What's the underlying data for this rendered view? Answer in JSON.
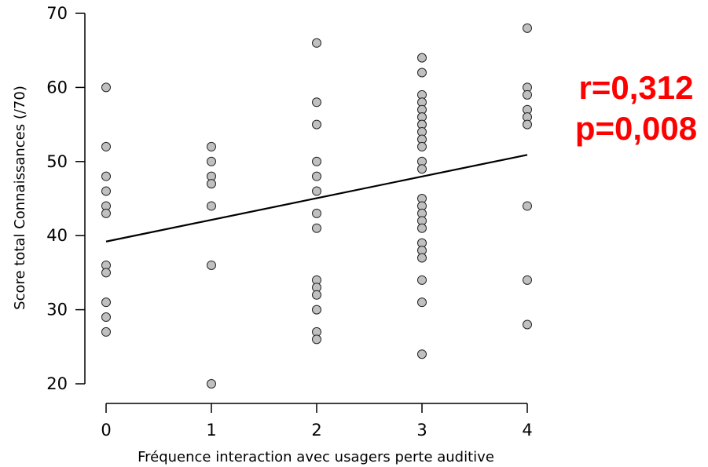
{
  "chart_data": {
    "type": "scatter",
    "xlabel": "Fréquence interaction avec usagers perte auditive",
    "ylabel": "Score total Connaissances (/70)",
    "x_ticks": [
      "0",
      "1",
      "2",
      "3",
      "4"
    ],
    "y_ticks": [
      "20",
      "30",
      "40",
      "50",
      "60",
      "70"
    ],
    "xlim": [
      0,
      4
    ],
    "ylim": [
      20,
      70
    ],
    "grid": false,
    "points": [
      {
        "x": 0,
        "y": 60
      },
      {
        "x": 0,
        "y": 52
      },
      {
        "x": 0,
        "y": 48
      },
      {
        "x": 0,
        "y": 46
      },
      {
        "x": 0,
        "y": 44
      },
      {
        "x": 0,
        "y": 43
      },
      {
        "x": 0,
        "y": 36
      },
      {
        "x": 0,
        "y": 35
      },
      {
        "x": 0,
        "y": 31
      },
      {
        "x": 0,
        "y": 29
      },
      {
        "x": 0,
        "y": 27
      },
      {
        "x": 1,
        "y": 52
      },
      {
        "x": 1,
        "y": 50
      },
      {
        "x": 1,
        "y": 48
      },
      {
        "x": 1,
        "y": 47
      },
      {
        "x": 1,
        "y": 44
      },
      {
        "x": 1,
        "y": 36
      },
      {
        "x": 1,
        "y": 20
      },
      {
        "x": 2,
        "y": 66
      },
      {
        "x": 2,
        "y": 58
      },
      {
        "x": 2,
        "y": 55
      },
      {
        "x": 2,
        "y": 50
      },
      {
        "x": 2,
        "y": 48
      },
      {
        "x": 2,
        "y": 46
      },
      {
        "x": 2,
        "y": 43
      },
      {
        "x": 2,
        "y": 41
      },
      {
        "x": 2,
        "y": 34
      },
      {
        "x": 2,
        "y": 33
      },
      {
        "x": 2,
        "y": 32
      },
      {
        "x": 2,
        "y": 30
      },
      {
        "x": 2,
        "y": 27
      },
      {
        "x": 2,
        "y": 26
      },
      {
        "x": 3,
        "y": 64
      },
      {
        "x": 3,
        "y": 62
      },
      {
        "x": 3,
        "y": 59
      },
      {
        "x": 3,
        "y": 58
      },
      {
        "x": 3,
        "y": 57
      },
      {
        "x": 3,
        "y": 56
      },
      {
        "x": 3,
        "y": 55
      },
      {
        "x": 3,
        "y": 54
      },
      {
        "x": 3,
        "y": 53
      },
      {
        "x": 3,
        "y": 52
      },
      {
        "x": 3,
        "y": 50
      },
      {
        "x": 3,
        "y": 49
      },
      {
        "x": 3,
        "y": 45
      },
      {
        "x": 3,
        "y": 44
      },
      {
        "x": 3,
        "y": 43
      },
      {
        "x": 3,
        "y": 42
      },
      {
        "x": 3,
        "y": 41
      },
      {
        "x": 3,
        "y": 39
      },
      {
        "x": 3,
        "y": 38
      },
      {
        "x": 3,
        "y": 37
      },
      {
        "x": 3,
        "y": 34
      },
      {
        "x": 3,
        "y": 31
      },
      {
        "x": 3,
        "y": 24
      },
      {
        "x": 4,
        "y": 68
      },
      {
        "x": 4,
        "y": 60
      },
      {
        "x": 4,
        "y": 59
      },
      {
        "x": 4,
        "y": 57
      },
      {
        "x": 4,
        "y": 56
      },
      {
        "x": 4,
        "y": 55
      },
      {
        "x": 4,
        "y": 44
      },
      {
        "x": 4,
        "y": 34
      },
      {
        "x": 4,
        "y": 28
      }
    ],
    "trend_line": {
      "x": [
        0,
        4
      ],
      "y": [
        39.2,
        50.9
      ]
    },
    "annotations": [
      "r=0,312",
      "p=0,008"
    ],
    "colors": {
      "point_fill": "#c0c0c0",
      "point_stroke": "#222222",
      "line": "#000000",
      "annotation": "#ff0000"
    }
  }
}
